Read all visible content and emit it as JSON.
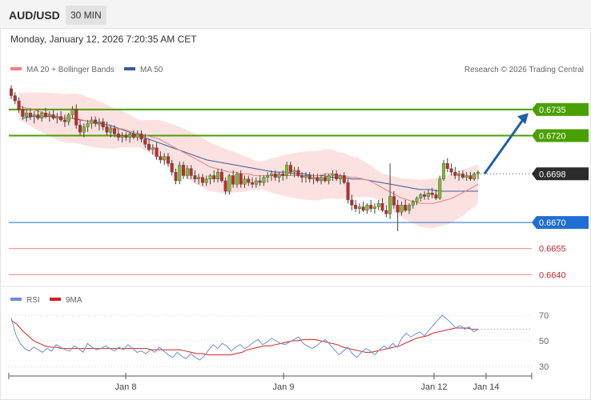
{
  "header": {
    "symbol": "AUD/USD",
    "timeframe": "30 MIN"
  },
  "timestamp": "Monday, January 12, 2026 7:20:35 AM CET",
  "copyright": "Research © 2026 Trading Central",
  "colors": {
    "bull": "#7dbc2f",
    "bear": "#c62828",
    "bollinger_fill": "#fbdcdc",
    "ma20": "#f08080",
    "ma50": "#3a5a99",
    "resistance": "#4aa000",
    "pivot": "#1f6fd1",
    "support": "#e88080",
    "current": "#2b2b2b",
    "arrow": "#1f5fa8",
    "rsi": "#6a8fd8",
    "rsi_ma": "#d62020"
  },
  "chart_data": [
    {
      "type": "candlestick",
      "title": "AUD/USD",
      "legend": [
        {
          "name": "MA 20 + Bollinger Bands",
          "color": "#f08080"
        },
        {
          "name": "MA 50",
          "color": "#3a5a99"
        }
      ],
      "legend_position": "top-left",
      "x_tick_labels": [
        "Jan 8",
        "Jan 9",
        "Jan 12",
        "Jan 14"
      ],
      "ylim": [
        0.6636,
        0.6752
      ],
      "grid": false,
      "levels": [
        {
          "value": 0.6735,
          "label": "0.6735",
          "kind": "resistance"
        },
        {
          "value": 0.672,
          "label": "0.6720",
          "kind": "resistance"
        },
        {
          "value": 0.6698,
          "label": "0.6698",
          "kind": "current"
        },
        {
          "value": 0.667,
          "label": "0.6670",
          "kind": "pivot"
        },
        {
          "value": 0.6655,
          "label": "0.6655",
          "kind": "support"
        },
        {
          "value": 0.664,
          "label": "0.6640",
          "kind": "support"
        }
      ],
      "forecast_arrow": {
        "from": 0.6698,
        "to": 0.6733
      },
      "ohlc": [
        [
          0.6747,
          0.6749,
          0.6741,
          0.6743
        ],
        [
          0.6743,
          0.6745,
          0.6738,
          0.674
        ],
        [
          0.674,
          0.6742,
          0.6733,
          0.6735
        ],
        [
          0.6735,
          0.6737,
          0.6729,
          0.6731
        ],
        [
          0.6731,
          0.6735,
          0.6728,
          0.6733
        ],
        [
          0.6733,
          0.6736,
          0.6729,
          0.6731
        ],
        [
          0.6731,
          0.6734,
          0.6727,
          0.6732
        ],
        [
          0.6732,
          0.6735,
          0.6729,
          0.673
        ],
        [
          0.673,
          0.6734,
          0.6728,
          0.6733
        ],
        [
          0.6733,
          0.6736,
          0.673,
          0.6731
        ],
        [
          0.6731,
          0.6734,
          0.6728,
          0.6732
        ],
        [
          0.6732,
          0.6735,
          0.6729,
          0.673
        ],
        [
          0.673,
          0.6733,
          0.6727,
          0.6731
        ],
        [
          0.6731,
          0.6734,
          0.6728,
          0.6729
        ],
        [
          0.6729,
          0.6732,
          0.6725,
          0.6728
        ],
        [
          0.6728,
          0.6733,
          0.6726,
          0.6732
        ],
        [
          0.6732,
          0.6737,
          0.673,
          0.6735
        ],
        [
          0.6735,
          0.6738,
          0.6724,
          0.6726
        ],
        [
          0.6726,
          0.6729,
          0.672,
          0.6722
        ],
        [
          0.6722,
          0.6727,
          0.6719,
          0.6725
        ],
        [
          0.6725,
          0.6729,
          0.6722,
          0.6727
        ],
        [
          0.6727,
          0.6731,
          0.6724,
          0.6729
        ],
        [
          0.6729,
          0.6731,
          0.6725,
          0.6727
        ],
        [
          0.6727,
          0.673,
          0.6723,
          0.6728
        ],
        [
          0.6728,
          0.673,
          0.6723,
          0.6725
        ],
        [
          0.6725,
          0.6728,
          0.672,
          0.6722
        ],
        [
          0.6722,
          0.6726,
          0.6719,
          0.6724
        ],
        [
          0.6724,
          0.6726,
          0.6719,
          0.6721
        ],
        [
          0.6721,
          0.6724,
          0.6717,
          0.6719
        ],
        [
          0.6719,
          0.6722,
          0.6716,
          0.672
        ],
        [
          0.672,
          0.6722,
          0.6717,
          0.6719
        ],
        [
          0.6719,
          0.6722,
          0.6716,
          0.6721
        ],
        [
          0.6721,
          0.6723,
          0.6718,
          0.6719
        ],
        [
          0.6719,
          0.6723,
          0.6717,
          0.6721
        ],
        [
          0.6721,
          0.6723,
          0.6716,
          0.6718
        ],
        [
          0.6718,
          0.6721,
          0.6713,
          0.6715
        ],
        [
          0.6715,
          0.6718,
          0.6711,
          0.6712
        ],
        [
          0.6712,
          0.6715,
          0.6709,
          0.6713
        ],
        [
          0.6713,
          0.6716,
          0.6706,
          0.6708
        ],
        [
          0.6708,
          0.6711,
          0.6704,
          0.6706
        ],
        [
          0.6706,
          0.671,
          0.6703,
          0.6708
        ],
        [
          0.6708,
          0.671,
          0.6702,
          0.6704
        ],
        [
          0.6704,
          0.6706,
          0.6697,
          0.6699
        ],
        [
          0.6699,
          0.6701,
          0.6692,
          0.6694
        ],
        [
          0.6694,
          0.6705,
          0.6692,
          0.6703
        ],
        [
          0.6703,
          0.6705,
          0.6695,
          0.6697
        ],
        [
          0.6697,
          0.6703,
          0.6695,
          0.6701
        ],
        [
          0.6701,
          0.6703,
          0.6695,
          0.6697
        ],
        [
          0.6697,
          0.67,
          0.6693,
          0.6695
        ],
        [
          0.6695,
          0.6698,
          0.6692,
          0.6696
        ],
        [
          0.6696,
          0.6698,
          0.6691,
          0.6693
        ],
        [
          0.6693,
          0.6697,
          0.6691,
          0.6695
        ],
        [
          0.6695,
          0.6698,
          0.6692,
          0.6697
        ],
        [
          0.6697,
          0.67,
          0.6693,
          0.6695
        ],
        [
          0.6695,
          0.6701,
          0.6693,
          0.6699
        ],
        [
          0.6699,
          0.6701,
          0.6693,
          0.6694
        ],
        [
          0.6694,
          0.6696,
          0.6686,
          0.6688
        ],
        [
          0.6688,
          0.6698,
          0.6686,
          0.6697
        ],
        [
          0.6697,
          0.67,
          0.669,
          0.6692
        ],
        [
          0.6692,
          0.6699,
          0.669,
          0.6698
        ],
        [
          0.6698,
          0.67,
          0.669,
          0.6692
        ],
        [
          0.6692,
          0.6697,
          0.669,
          0.6695
        ],
        [
          0.6695,
          0.6697,
          0.6691,
          0.6693
        ],
        [
          0.6693,
          0.6696,
          0.669,
          0.6692
        ],
        [
          0.6692,
          0.6696,
          0.669,
          0.6694
        ],
        [
          0.6694,
          0.6697,
          0.6691,
          0.6693
        ],
        [
          0.6693,
          0.6697,
          0.6691,
          0.6696
        ],
        [
          0.6696,
          0.6699,
          0.6693,
          0.6697
        ],
        [
          0.6697,
          0.67,
          0.6694,
          0.6698
        ],
        [
          0.6698,
          0.67,
          0.6694,
          0.6696
        ],
        [
          0.6696,
          0.6699,
          0.6693,
          0.6698
        ],
        [
          0.6698,
          0.67,
          0.6694,
          0.6697
        ],
        [
          0.6697,
          0.6705,
          0.6695,
          0.6703
        ],
        [
          0.6703,
          0.6705,
          0.6697,
          0.6699
        ],
        [
          0.6699,
          0.6702,
          0.6696,
          0.67
        ],
        [
          0.67,
          0.6702,
          0.6696,
          0.6697
        ],
        [
          0.6697,
          0.6699,
          0.6693,
          0.6696
        ],
        [
          0.6696,
          0.6699,
          0.6693,
          0.6697
        ],
        [
          0.6697,
          0.6699,
          0.6693,
          0.6695
        ],
        [
          0.6695,
          0.6698,
          0.6692,
          0.6696
        ],
        [
          0.6696,
          0.6698,
          0.6693,
          0.6694
        ],
        [
          0.6694,
          0.6697,
          0.6692,
          0.6696
        ],
        [
          0.6696,
          0.6698,
          0.6693,
          0.6694
        ],
        [
          0.6694,
          0.6698,
          0.6692,
          0.6697
        ],
        [
          0.6697,
          0.67,
          0.6694,
          0.6698
        ],
        [
          0.6698,
          0.67,
          0.6694,
          0.6695
        ],
        [
          0.6695,
          0.6698,
          0.6692,
          0.6697
        ],
        [
          0.6697,
          0.6699,
          0.6692,
          0.6693
        ],
        [
          0.6693,
          0.6695,
          0.6681,
          0.6683
        ],
        [
          0.6683,
          0.6686,
          0.6677,
          0.668
        ],
        [
          0.668,
          0.6683,
          0.6676,
          0.6678
        ],
        [
          0.6678,
          0.6681,
          0.6675,
          0.6679
        ],
        [
          0.6679,
          0.6682,
          0.6676,
          0.6677
        ],
        [
          0.6677,
          0.6681,
          0.6675,
          0.668
        ],
        [
          0.668,
          0.6683,
          0.6676,
          0.6678
        ],
        [
          0.6678,
          0.6681,
          0.6675,
          0.6679
        ],
        [
          0.6679,
          0.6683,
          0.6677,
          0.6681
        ],
        [
          0.6681,
          0.6684,
          0.6676,
          0.6677
        ],
        [
          0.6677,
          0.668,
          0.6673,
          0.6675
        ],
        [
          0.6675,
          0.6704,
          0.6672,
          0.6685
        ],
        [
          0.6685,
          0.6688,
          0.6678,
          0.668
        ],
        [
          0.668,
          0.6683,
          0.6665,
          0.6676
        ],
        [
          0.6676,
          0.6682,
          0.6674,
          0.668
        ],
        [
          0.668,
          0.6683,
          0.6676,
          0.6677
        ],
        [
          0.6677,
          0.6681,
          0.6675,
          0.668
        ],
        [
          0.668,
          0.6683,
          0.6678,
          0.6682
        ],
        [
          0.6682,
          0.6685,
          0.668,
          0.6684
        ],
        [
          0.6684,
          0.6687,
          0.6682,
          0.6686
        ],
        [
          0.6686,
          0.6688,
          0.6683,
          0.6685
        ],
        [
          0.6685,
          0.6689,
          0.6683,
          0.6687
        ],
        [
          0.6687,
          0.669,
          0.6684,
          0.6686
        ],
        [
          0.6686,
          0.6689,
          0.6683,
          0.6684
        ],
        [
          0.6684,
          0.6697,
          0.6683,
          0.6695
        ],
        [
          0.6695,
          0.6706,
          0.6694,
          0.6704
        ],
        [
          0.6704,
          0.6707,
          0.6699,
          0.6701
        ],
        [
          0.6701,
          0.6704,
          0.6697,
          0.6699
        ],
        [
          0.6699,
          0.6702,
          0.6695,
          0.6697
        ],
        [
          0.6697,
          0.67,
          0.6694,
          0.6698
        ],
        [
          0.6698,
          0.67,
          0.6695,
          0.6696
        ],
        [
          0.6696,
          0.6699,
          0.6694,
          0.6697
        ],
        [
          0.6697,
          0.6699,
          0.6694,
          0.6695
        ],
        [
          0.6695,
          0.6699,
          0.6694,
          0.6698
        ],
        [
          0.6698,
          0.67,
          0.6695,
          0.6699
        ]
      ],
      "ma20": [
        0.6737,
        0.6736,
        0.6735,
        0.6734,
        0.6733,
        0.6732,
        0.6731,
        0.673,
        0.673,
        0.673,
        0.6729,
        0.6728,
        0.6727,
        0.6726,
        0.6725,
        0.6724,
        0.6724,
        0.6723,
        0.6722,
        0.6721,
        0.672,
        0.6719,
        0.6718,
        0.6716,
        0.6714,
        0.6712,
        0.671,
        0.6708,
        0.6706,
        0.6704,
        0.6702,
        0.6701,
        0.67,
        0.6699,
        0.6699,
        0.6698,
        0.6698,
        0.6697,
        0.6697,
        0.6697,
        0.6697,
        0.6697,
        0.6697,
        0.6697,
        0.6697,
        0.6697,
        0.6697,
        0.6697,
        0.6698,
        0.6698,
        0.6697,
        0.6697,
        0.6696,
        0.6696,
        0.6695,
        0.6694,
        0.6692,
        0.669,
        0.6688,
        0.6686,
        0.6684,
        0.6683,
        0.6682,
        0.6681,
        0.6681,
        0.6681,
        0.6682,
        0.6683,
        0.6684,
        0.6686,
        0.6688,
        0.669,
        0.6692
      ],
      "ma50": [
        0.673,
        0.6731,
        0.6731,
        0.6731,
        0.673,
        0.673,
        0.6729,
        0.6728,
        0.6727,
        0.6726,
        0.6724,
        0.6722,
        0.672,
        0.6718,
        0.6716,
        0.6714,
        0.6712,
        0.671,
        0.6708,
        0.6706,
        0.6705,
        0.6704,
        0.6703,
        0.6702,
        0.6701,
        0.67,
        0.6699,
        0.6699,
        0.6698,
        0.6698,
        0.6697,
        0.6697,
        0.6696,
        0.6696,
        0.6695,
        0.6695,
        0.6694,
        0.6693,
        0.6692,
        0.6691,
        0.669,
        0.6689,
        0.6689,
        0.6688,
        0.6688,
        0.6688,
        0.6688,
        0.6688
      ],
      "bollinger_width": 0.0011
    },
    {
      "type": "line",
      "legend": [
        {
          "name": "RSI",
          "color": "#6a8fd8"
        },
        {
          "name": "9MA",
          "color": "#d62020"
        }
      ],
      "legend_position": "top-left",
      "ylim": [
        25,
        75
      ],
      "y_tick_labels": [
        "70",
        "50",
        "30"
      ],
      "y_ticks": [
        70,
        50,
        30
      ],
      "series": [
        {
          "name": "RSI",
          "values": [
            68,
            55,
            48,
            44,
            42,
            45,
            43,
            41,
            44,
            42,
            47,
            45,
            43,
            42,
            46,
            44,
            41,
            48,
            45,
            43,
            44,
            46,
            44,
            42,
            45,
            43,
            47,
            44,
            41,
            42,
            40,
            43,
            41,
            45,
            42,
            39,
            37,
            41,
            38,
            36,
            40,
            37,
            35,
            38,
            43,
            47,
            44,
            48,
            46,
            42,
            45,
            47,
            44,
            46,
            49,
            51,
            47,
            49,
            52,
            50,
            48,
            47,
            49,
            51,
            53,
            48,
            46,
            44,
            46,
            49,
            51,
            47,
            43,
            39,
            42,
            45,
            40,
            37,
            41,
            44,
            42,
            39,
            43,
            46,
            44,
            48,
            45,
            52,
            56,
            53,
            55,
            57,
            54,
            58,
            62,
            66,
            70,
            67,
            64,
            60,
            62,
            59,
            61,
            57,
            59
          ]
        },
        {
          "name": "9MA",
          "values": [
            66,
            63,
            58,
            54,
            50,
            48,
            46,
            45,
            45,
            44,
            44,
            44,
            44,
            44,
            44,
            44,
            44,
            44,
            44,
            44,
            44,
            44,
            44,
            44,
            44,
            43,
            43,
            43,
            43,
            43,
            43,
            42,
            41,
            40,
            40,
            39,
            39,
            39,
            39,
            39,
            40,
            41,
            43,
            44,
            45,
            46,
            46,
            47,
            48,
            49,
            50,
            50,
            51,
            51,
            51,
            50,
            49,
            48,
            47,
            45,
            44,
            43,
            42,
            41,
            41,
            42,
            43,
            44,
            45,
            46,
            48,
            50,
            52,
            53,
            54,
            56,
            57,
            58,
            59,
            60,
            60,
            60,
            59,
            59
          ]
        }
      ]
    }
  ]
}
